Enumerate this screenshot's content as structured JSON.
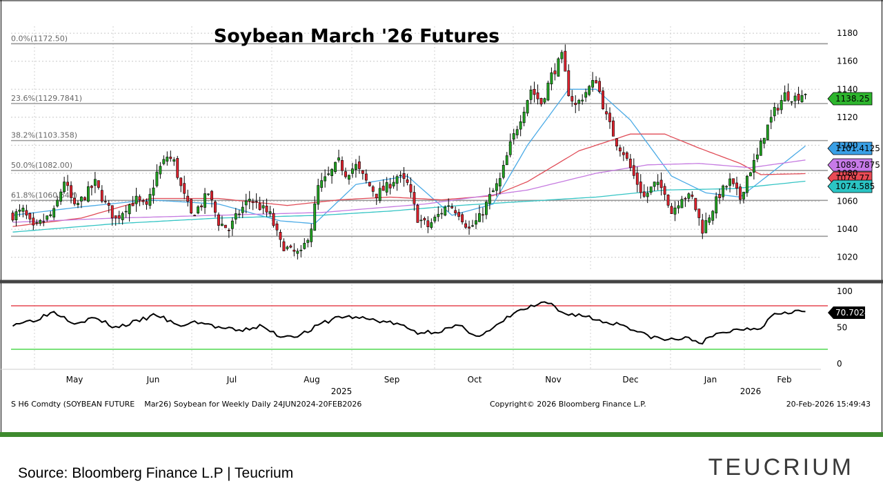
{
  "chart_data": [
    {
      "type": "candlestick",
      "title": "Soybean March '26 Futures",
      "y_ticks": [
        1020,
        1040,
        1060,
        1080,
        1100,
        1120,
        1140,
        1160,
        1180
      ],
      "ylim": [
        1010,
        1185
      ],
      "x_ticks": [
        "May",
        "Jun",
        "Jul",
        "Aug",
        "Sep",
        "Oct",
        "Nov",
        "Dec",
        "Jan",
        "Feb"
      ],
      "year_labels": [
        "2025",
        "2026"
      ],
      "grid": true,
      "fib_levels": [
        {
          "label": "0.0%(1172.50)",
          "value": 1172.5
        },
        {
          "label": "23.6%(1129.7841)",
          "value": 1129.7841
        },
        {
          "label": "38.2%(1103.358)",
          "value": 1103.358
        },
        {
          "label": "50.0%(1082.00)",
          "value": 1082.0
        },
        {
          "label": "61.8%(1060.642)",
          "value": 1060.642
        }
      ],
      "fib_lower_guide": 1035,
      "price_tags": [
        {
          "value": 1138.25,
          "label": "1138.25",
          "color": "#2db52d"
        },
        {
          "value": 1101.4125,
          "label": "1101.4125",
          "color": "#3aa0e6"
        },
        {
          "value": 1089.7875,
          "label": "1089.7875",
          "color": "#c77ae8"
        },
        {
          "value": 1079.77,
          "label": "1079.77",
          "color": "#ea4b55"
        },
        {
          "value": 1074.585,
          "label": "1074.585",
          "color": "#2bc4c4"
        }
      ],
      "closes_anchor": [
        [
          0,
          1050
        ],
        [
          3,
          1053
        ],
        [
          6,
          1040
        ],
        [
          9,
          1046
        ],
        [
          12,
          1052
        ],
        [
          15,
          1075
        ],
        [
          18,
          1055
        ],
        [
          21,
          1064
        ],
        [
          24,
          1073
        ],
        [
          27,
          1058
        ],
        [
          30,
          1047
        ],
        [
          33,
          1056
        ],
        [
          36,
          1061
        ],
        [
          39,
          1055
        ],
        [
          42,
          1080
        ],
        [
          45,
          1092
        ],
        [
          47,
          1088
        ],
        [
          49,
          1070
        ],
        [
          52,
          1050
        ],
        [
          55,
          1058
        ],
        [
          57,
          1066
        ],
        [
          60,
          1045
        ],
        [
          63,
          1040
        ],
        [
          66,
          1052
        ],
        [
          69,
          1062
        ],
        [
          72,
          1056
        ],
        [
          75,
          1050
        ],
        [
          78,
          1030
        ],
        [
          81,
          1024
        ],
        [
          84,
          1022
        ],
        [
          87,
          1042
        ],
        [
          89,
          1070
        ],
        [
          92,
          1078
        ],
        [
          95,
          1088
        ],
        [
          97,
          1080
        ],
        [
          100,
          1085
        ],
        [
          103,
          1074
        ],
        [
          106,
          1065
        ],
        [
          109,
          1070
        ],
        [
          112,
          1078
        ],
        [
          115,
          1072
        ],
        [
          118,
          1048
        ],
        [
          121,
          1042
        ],
        [
          124,
          1050
        ],
        [
          127,
          1058
        ],
        [
          130,
          1052
        ],
        [
          133,
          1040
        ],
        [
          136,
          1048
        ],
        [
          139,
          1063
        ],
        [
          142,
          1075
        ],
        [
          145,
          1100
        ],
        [
          148,
          1120
        ],
        [
          151,
          1140
        ],
        [
          154,
          1130
        ],
        [
          157,
          1150
        ],
        [
          160,
          1163
        ],
        [
          162,
          1138
        ],
        [
          164,
          1128
        ],
        [
          167,
          1138
        ],
        [
          170,
          1147
        ],
        [
          173,
          1120
        ],
        [
          176,
          1102
        ],
        [
          178,
          1095
        ],
        [
          181,
          1078
        ],
        [
          184,
          1063
        ],
        [
          187,
          1072
        ],
        [
          190,
          1068
        ],
        [
          192,
          1052
        ],
        [
          195,
          1064
        ],
        [
          198,
          1062
        ],
        [
          201,
          1040
        ],
        [
          203,
          1050
        ],
        [
          206,
          1065
        ],
        [
          209,
          1074
        ],
        [
          212,
          1062
        ],
        [
          214,
          1078
        ],
        [
          217,
          1092
        ],
        [
          219,
          1108
        ],
        [
          222,
          1124
        ],
        [
          225,
          1136
        ],
        [
          228,
          1134
        ],
        [
          231,
          1138
        ]
      ],
      "n_bars": 232,
      "moving_averages": [
        {
          "color": "#4aaae6",
          "points": [
            [
              0,
              1050
            ],
            [
              20,
              1056
            ],
            [
              40,
              1061
            ],
            [
              60,
              1058
            ],
            [
              78,
              1046
            ],
            [
              88,
              1044
            ],
            [
              100,
              1072
            ],
            [
              115,
              1078
            ],
            [
              128,
              1050
            ],
            [
              140,
              1058
            ],
            [
              150,
              1100
            ],
            [
              162,
              1140
            ],
            [
              170,
              1140
            ],
            [
              180,
              1118
            ],
            [
              192,
              1078
            ],
            [
              202,
              1066
            ],
            [
              212,
              1063
            ],
            [
              222,
              1082
            ],
            [
              232,
              1101.4
            ]
          ]
        },
        {
          "color": "#e04a55",
          "points": [
            [
              0,
              1042
            ],
            [
              20,
              1048
            ],
            [
              40,
              1062
            ],
            [
              60,
              1062
            ],
            [
              80,
              1057
            ],
            [
              95,
              1061
            ],
            [
              110,
              1063
            ],
            [
              125,
              1061
            ],
            [
              140,
              1064
            ],
            [
              150,
              1074
            ],
            [
              165,
              1096
            ],
            [
              180,
              1108
            ],
            [
              190,
              1108
            ],
            [
              200,
              1098
            ],
            [
              212,
              1087
            ],
            [
              218,
              1079
            ],
            [
              232,
              1079.8
            ]
          ]
        },
        {
          "color": "#c57ae0",
          "points": [
            [
              0,
              1045
            ],
            [
              30,
              1048
            ],
            [
              60,
              1050
            ],
            [
              90,
              1052
            ],
            [
              120,
              1058
            ],
            [
              150,
              1068
            ],
            [
              170,
              1080
            ],
            [
              185,
              1086
            ],
            [
              200,
              1087
            ],
            [
              215,
              1084
            ],
            [
              232,
              1089.8
            ]
          ]
        },
        {
          "color": "#33c4c4",
          "points": [
            [
              0,
              1038
            ],
            [
              30,
              1044
            ],
            [
              60,
              1048
            ],
            [
              90,
              1050
            ],
            [
              110,
              1053
            ],
            [
              130,
              1057
            ],
            [
              150,
              1060
            ],
            [
              170,
              1063
            ],
            [
              190,
              1068
            ],
            [
              210,
              1069
            ],
            [
              232,
              1074.6
            ]
          ]
        }
      ]
    },
    {
      "type": "line",
      "y_ticks": [
        0,
        50,
        100
      ],
      "ylim": [
        0,
        100
      ],
      "overbought": 80,
      "oversold": 20,
      "last_label": "70.7024",
      "rsi_anchor": [
        [
          0,
          55
        ],
        [
          6,
          60
        ],
        [
          12,
          72
        ],
        [
          18,
          57
        ],
        [
          24,
          63
        ],
        [
          30,
          50
        ],
        [
          36,
          58
        ],
        [
          42,
          68
        ],
        [
          48,
          52
        ],
        [
          54,
          58
        ],
        [
          60,
          50
        ],
        [
          66,
          45
        ],
        [
          72,
          52
        ],
        [
          78,
          38
        ],
        [
          84,
          40
        ],
        [
          90,
          55
        ],
        [
          95,
          65
        ],
        [
          100,
          64
        ],
        [
          106,
          60
        ],
        [
          112,
          55
        ],
        [
          118,
          43
        ],
        [
          124,
          45
        ],
        [
          130,
          52
        ],
        [
          136,
          38
        ],
        [
          140,
          48
        ],
        [
          146,
          70
        ],
        [
          152,
          80
        ],
        [
          156,
          84
        ],
        [
          160,
          70
        ],
        [
          166,
          67
        ],
        [
          172,
          58
        ],
        [
          178,
          54
        ],
        [
          184,
          40
        ],
        [
          190,
          33
        ],
        [
          196,
          35
        ],
        [
          201,
          30
        ],
        [
          206,
          42
        ],
        [
          212,
          48
        ],
        [
          218,
          50
        ],
        [
          222,
          70
        ],
        [
          228,
          73
        ],
        [
          231,
          71
        ]
      ]
    }
  ],
  "footer": {
    "ticker_line": "S H6 Comdty (SOYBEAN FUTURE    Mar26) Soybean for Weekly Daily 24JUN2024-20FEB2026",
    "copyright": "Copyright© 2026 Bloomberg Finance L.P.",
    "timestamp": "20-Feb-2026 15:49:43"
  },
  "source_text": "Source: Bloomberg Finance L.P | Teucrium",
  "brand": "TEUCRIUM"
}
